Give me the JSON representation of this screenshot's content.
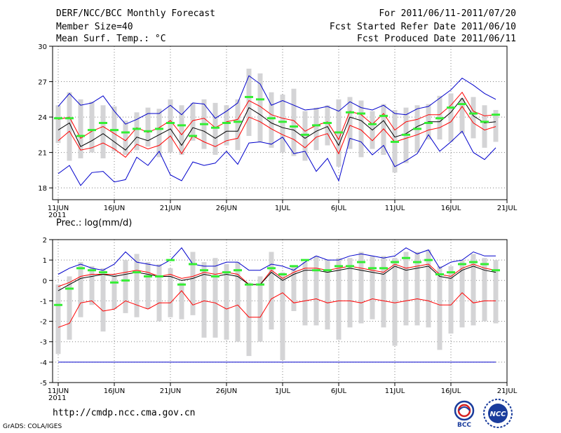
{
  "header": {
    "title": "DERF/NCC/BCC Monthly Forecast",
    "member_size": "Member Size=40",
    "variable": "Mean Surf. Temp.: °C",
    "period": "For 2011/06/11-2011/07/20",
    "start_date": "Fcst Started Refer Date 2011/06/10",
    "produced_date": "Fcst Produced Date 2011/06/11"
  },
  "footer": {
    "url": "http://cmdp.ncc.cma.gov.cn",
    "credit": "GrADS: COLA/IGES",
    "logo1_text": "BCC",
    "logo2_text": "NCC"
  },
  "colors": {
    "ensemble_mean": "#000000",
    "spread": "#ff0000",
    "extremes": "#0000cc",
    "climatology": "#33ee33",
    "range_bar": "#d4d4d6",
    "grid": "#808080"
  },
  "chart_data": [
    {
      "type": "line",
      "title": "",
      "ylabel": "Mean Surf. Temp.: °C",
      "ylim": [
        17,
        30
      ],
      "yticks": [
        18,
        21,
        24,
        27,
        30
      ],
      "x": [
        1,
        2,
        3,
        4,
        5,
        6,
        7,
        8,
        9,
        10,
        11,
        12,
        13,
        14,
        15,
        16,
        17,
        18,
        19,
        20,
        21,
        22,
        23,
        24,
        25,
        26,
        27,
        28,
        29,
        30,
        31,
        32,
        33,
        34,
        35,
        36,
        37,
        38,
        39,
        40
      ],
      "xlim": [
        0.5,
        41
      ],
      "xticks": [
        {
          "pos": 1,
          "label": "11JUN"
        },
        {
          "pos": 6,
          "label": "16JUN"
        },
        {
          "pos": 11,
          "label": "21JUN"
        },
        {
          "pos": 16,
          "label": "26JUN"
        },
        {
          "pos": 21,
          "label": "1JUL"
        },
        {
          "pos": 26,
          "label": "6JUL"
        },
        {
          "pos": 31,
          "label": "11JUL"
        },
        {
          "pos": 36,
          "label": "16JUL"
        },
        {
          "pos": 41,
          "label": "21JUL"
        }
      ],
      "year_label": "2011",
      "series": [
        {
          "name": "max",
          "color": "#0000cc",
          "values": [
            24.9,
            26.0,
            25.0,
            25.2,
            25.8,
            24.5,
            23.4,
            23.8,
            24.3,
            24.3,
            25.0,
            24.2,
            25.2,
            25.1,
            23.9,
            24.5,
            25.2,
            27.5,
            26.8,
            25.0,
            25.4,
            25.0,
            24.6,
            24.7,
            24.9,
            24.5,
            25.3,
            24.8,
            24.6,
            25.0,
            24.3,
            24.2,
            24.7,
            24.9,
            25.6,
            26.3,
            27.3,
            26.7,
            26.0,
            25.5
          ]
        },
        {
          "name": "upper",
          "color": "#ff0000",
          "values": [
            23.8,
            24.0,
            22.2,
            22.8,
            23.2,
            22.6,
            22.0,
            23.1,
            22.7,
            23.1,
            23.7,
            22.5,
            23.7,
            23.9,
            23.1,
            23.6,
            23.8,
            25.4,
            24.9,
            24.2,
            23.9,
            23.7,
            22.8,
            23.3,
            23.6,
            22.1,
            24.5,
            24.2,
            23.4,
            24.3,
            22.9,
            23.6,
            23.8,
            24.2,
            24.2,
            25.0,
            26.1,
            24.5,
            24.1,
            24.2
          ]
        },
        {
          "name": "mean",
          "color": "#000000",
          "values": [
            22.9,
            23.5,
            21.5,
            22.0,
            22.6,
            21.9,
            21.2,
            22.3,
            22.0,
            22.5,
            23.0,
            21.6,
            23.1,
            22.8,
            22.2,
            22.8,
            22.8,
            24.8,
            24.2,
            23.5,
            23.1,
            22.9,
            22.2,
            22.8,
            23.2,
            21.6,
            24.0,
            23.7,
            22.9,
            23.7,
            22.3,
            22.6,
            23.2,
            23.6,
            23.6,
            24.4,
            25.6,
            24.1,
            23.5,
            23.6
          ]
        },
        {
          "name": "lower",
          "color": "#ff0000",
          "values": [
            22.0,
            22.8,
            21.2,
            21.4,
            21.8,
            21.3,
            20.6,
            21.7,
            21.3,
            21.6,
            22.4,
            20.9,
            22.4,
            21.9,
            21.5,
            22.0,
            22.2,
            24.0,
            23.6,
            23.0,
            22.5,
            22.1,
            21.4,
            22.3,
            22.6,
            20.9,
            23.3,
            22.9,
            22.0,
            23.0,
            21.9,
            22.2,
            22.5,
            22.9,
            23.1,
            23.6,
            24.9,
            23.5,
            22.9,
            23.2
          ]
        },
        {
          "name": "min",
          "color": "#0000cc",
          "values": [
            19.2,
            19.9,
            18.2,
            19.3,
            19.4,
            18.5,
            18.7,
            20.6,
            19.9,
            21.1,
            19.1,
            18.6,
            20.2,
            19.9,
            20.1,
            21.1,
            20.0,
            21.8,
            21.9,
            21.7,
            22.3,
            20.9,
            21.1,
            19.4,
            20.5,
            18.6,
            22.2,
            21.9,
            20.8,
            21.6,
            19.8,
            20.3,
            20.9,
            22.5,
            21.1,
            21.9,
            22.8,
            21.0,
            20.4,
            21.4
          ]
        },
        {
          "name": "climatology",
          "color": "#33ee33",
          "values": [
            23.9,
            23.9,
            22.4,
            22.9,
            23.5,
            22.9,
            22.7,
            23.0,
            22.8,
            23.0,
            23.5,
            23.3,
            22.4,
            23.4,
            23.1,
            23.5,
            23.6,
            25.7,
            25.5,
            23.9,
            23.6,
            23.2,
            22.5,
            23.3,
            23.5,
            22.7,
            24.4,
            24.3,
            23.4,
            24.1,
            21.9,
            22.5,
            23.0,
            23.5,
            23.9,
            24.8,
            25.1,
            24.3,
            23.6,
            24.2
          ]
        },
        {
          "name": "range_top",
          "color": "#d4d4d6",
          "values": [
            25.0,
            26.1,
            25.5,
            25.3,
            25.0,
            24.9,
            23.7,
            24.4,
            24.8,
            24.7,
            25.5,
            25.0,
            25.2,
            25.5,
            25.2,
            25.0,
            25.5,
            28.1,
            27.7,
            26.1,
            25.9,
            26.4,
            24.5,
            24.8,
            25.0,
            25.5,
            25.7,
            25.4,
            24.5,
            25.1,
            24.6,
            24.8,
            25.0,
            25.1,
            25.8,
            26.0,
            25.6,
            25.7,
            25.0,
            24.6
          ]
        },
        {
          "name": "range_bottom",
          "color": "#d4d4d6",
          "values": [
            21.8,
            20.3,
            20.5,
            21.0,
            20.5,
            21.1,
            20.8,
            21.2,
            21.5,
            20.6,
            21.0,
            20.8,
            22.0,
            21.3,
            20.8,
            21.6,
            21.2,
            22.4,
            21.9,
            21.4,
            21.0,
            20.7,
            20.3,
            21.2,
            21.6,
            19.8,
            21.3,
            20.6,
            21.3,
            20.8,
            19.3,
            20.1,
            21.0,
            22.1,
            22.1,
            21.9,
            22.6,
            22.2,
            21.4,
            21.9
          ]
        }
      ]
    },
    {
      "type": "line",
      "title": "Prec.: log(mm/d)",
      "ylabel": "Prec.: log(mm/d)",
      "ylim": [
        -5,
        2
      ],
      "yticks": [
        -5,
        -4,
        -3,
        -2,
        -1,
        0,
        1,
        2
      ],
      "x": [
        1,
        2,
        3,
        4,
        5,
        6,
        7,
        8,
        9,
        10,
        11,
        12,
        13,
        14,
        15,
        16,
        17,
        18,
        19,
        20,
        21,
        22,
        23,
        24,
        25,
        26,
        27,
        28,
        29,
        30,
        31,
        32,
        33,
        34,
        35,
        36,
        37,
        38,
        39,
        40
      ],
      "xlim": [
        0.5,
        41
      ],
      "xticks": [
        {
          "pos": 1,
          "label": "11JUN"
        },
        {
          "pos": 6,
          "label": "16JUN"
        },
        {
          "pos": 11,
          "label": "21JUN"
        },
        {
          "pos": 16,
          "label": "26JUN"
        },
        {
          "pos": 21,
          "label": "1JUL"
        },
        {
          "pos": 26,
          "label": "6JUL"
        },
        {
          "pos": 31,
          "label": "11JUL"
        },
        {
          "pos": 36,
          "label": "16JUL"
        },
        {
          "pos": 41,
          "label": "21JUL"
        }
      ],
      "year_label": "2011",
      "series": [
        {
          "name": "max",
          "color": "#0000cc",
          "values": [
            0.3,
            0.6,
            0.8,
            0.6,
            0.5,
            0.8,
            1.4,
            0.9,
            0.8,
            0.7,
            1.0,
            1.6,
            0.8,
            0.7,
            0.7,
            0.9,
            0.9,
            0.5,
            0.5,
            0.8,
            0.7,
            0.5,
            0.9,
            1.2,
            1.0,
            1.0,
            1.2,
            1.3,
            1.2,
            1.1,
            1.2,
            1.6,
            1.3,
            1.5,
            0.6,
            0.9,
            1.0,
            1.4,
            1.2,
            1.2
          ]
        },
        {
          "name": "upper",
          "color": "#ff0000",
          "values": [
            -0.3,
            -0.1,
            0.2,
            0.3,
            0.3,
            0.3,
            0.4,
            0.5,
            0.4,
            0.2,
            0.3,
            0.1,
            0.2,
            0.4,
            0.3,
            0.4,
            0.3,
            -0.2,
            -0.2,
            0.5,
            0.1,
            0.4,
            0.6,
            0.6,
            0.5,
            0.6,
            0.7,
            0.6,
            0.5,
            0.4,
            0.8,
            0.6,
            0.7,
            0.8,
            0.3,
            0.2,
            0.6,
            0.8,
            0.6,
            0.5
          ]
        },
        {
          "name": "mean",
          "color": "#000000",
          "values": [
            -0.5,
            -0.2,
            0.1,
            0.2,
            0.3,
            0.2,
            0.3,
            0.4,
            0.3,
            0.2,
            0.2,
            0.0,
            0.1,
            0.3,
            0.2,
            0.3,
            0.2,
            -0.2,
            -0.2,
            0.4,
            0.0,
            0.3,
            0.5,
            0.5,
            0.4,
            0.5,
            0.6,
            0.5,
            0.4,
            0.3,
            0.7,
            0.5,
            0.6,
            0.7,
            0.2,
            0.1,
            0.5,
            0.7,
            0.5,
            0.4
          ]
        },
        {
          "name": "lower",
          "color": "#ff0000",
          "values": [
            -2.3,
            -2.1,
            -1.1,
            -1.0,
            -1.5,
            -1.4,
            -1.0,
            -1.2,
            -1.4,
            -1.1,
            -1.1,
            -0.5,
            -1.2,
            -1.0,
            -1.1,
            -1.4,
            -1.2,
            -1.8,
            -1.8,
            -0.9,
            -0.6,
            -1.1,
            -1.0,
            -0.9,
            -1.1,
            -1.0,
            -1.0,
            -1.1,
            -0.9,
            -1.0,
            -1.1,
            -1.0,
            -0.9,
            -1.0,
            -1.2,
            -1.2,
            -0.6,
            -1.1,
            -1.0,
            -1.0
          ]
        },
        {
          "name": "min",
          "color": "#0000cc",
          "values": [
            -4.0,
            -4.0,
            -4.0,
            -4.0,
            -4.0,
            -4.0,
            -4.0,
            -4.0,
            -4.0,
            -4.0,
            -4.0,
            -4.0,
            -4.0,
            -4.0,
            -4.0,
            -4.0,
            -4.0,
            -4.0,
            -4.0,
            -4.0,
            -4.0,
            -4.0,
            -4.0,
            -4.0,
            -4.0,
            -4.0,
            -4.0,
            -4.0,
            -4.0,
            -4.0,
            -4.0,
            -4.0,
            -4.0,
            -4.0,
            -4.0,
            -4.0,
            -4.0,
            -4.0,
            -4.0,
            -4.0
          ]
        },
        {
          "name": "climatology",
          "color": "#33ee33",
          "values": [
            -1.2,
            -0.4,
            0.6,
            0.5,
            0.4,
            -0.1,
            0.0,
            0.4,
            0.2,
            0.2,
            1.0,
            -0.2,
            0.8,
            0.5,
            0.2,
            0.4,
            0.5,
            -0.2,
            -0.2,
            0.6,
            0.3,
            0.7,
            1.0,
            0.5,
            0.5,
            0.7,
            0.7,
            0.9,
            0.6,
            0.6,
            0.9,
            1.1,
            0.9,
            1.0,
            0.3,
            0.4,
            0.8,
            0.9,
            0.8,
            0.5
          ]
        },
        {
          "name": "range_top",
          "color": "#d4d4d6",
          "values": [
            -0.2,
            0.2,
            0.9,
            0.7,
            0.6,
            0.3,
            1.0,
            1.3,
            0.9,
            0.8,
            0.6,
            -0.1,
            1.4,
            0.9,
            1.1,
            0.8,
            0.9,
            -0.1,
            0.2,
            1.4,
            0.4,
            0.7,
            0.9,
            1.2,
            1.0,
            1.1,
            1.1,
            1.4,
            1.2,
            1.2,
            1.1,
            1.4,
            1.4,
            1.5,
            0.7,
            0.7,
            1.0,
            1.3,
            1.1,
            1.0
          ]
        },
        {
          "name": "range_bottom",
          "color": "#d4d4d6",
          "values": [
            -3.6,
            -2.9,
            -1.8,
            -1.2,
            -2.5,
            -1.4,
            -1.6,
            -1.8,
            -1.4,
            -2.0,
            -1.8,
            -1.9,
            -1.7,
            -2.8,
            -2.8,
            -2.9,
            -3.0,
            -3.7,
            -3.0,
            -2.4,
            -3.9,
            -1.5,
            -2.2,
            -2.2,
            -2.4,
            -2.9,
            -2.3,
            -2.1,
            -1.9,
            -2.3,
            -3.2,
            -2.2,
            -2.2,
            -2.3,
            -3.4,
            -2.6,
            -2.3,
            -2.2,
            -2.0,
            -2.1
          ]
        }
      ]
    }
  ]
}
